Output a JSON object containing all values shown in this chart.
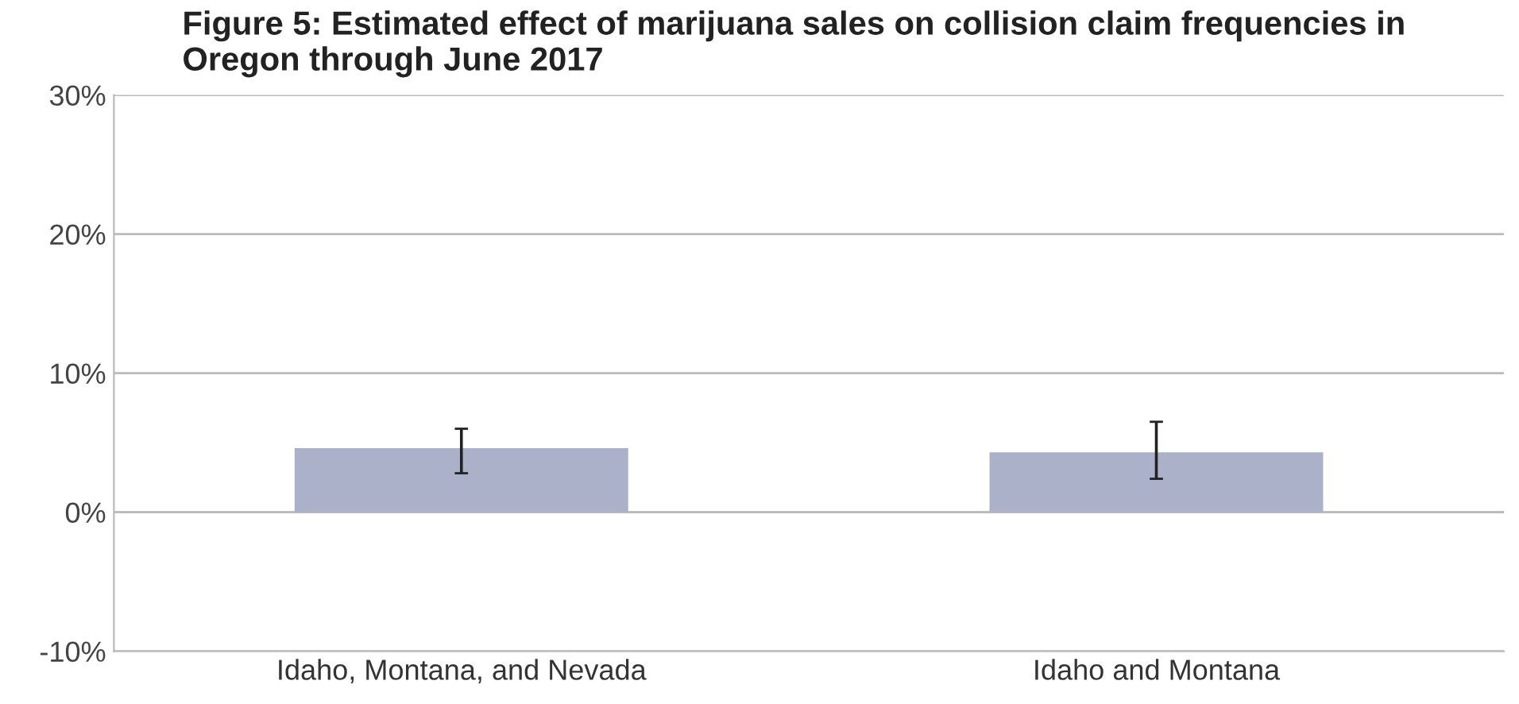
{
  "chart_data": {
    "type": "bar",
    "title": "Figure 5: Estimated effect of marijuana sales on collision claim frequencies in Oregon through June 2017",
    "categories": [
      "Idaho, Montana, and Nevada",
      "Idaho and Montana"
    ],
    "values": [
      4.6,
      4.3
    ],
    "color": "#aab1c8",
    "errors": [
      [
        2.8,
        6.0
      ],
      [
        2.4,
        6.5
      ]
    ],
    "ylim": [
      -10,
      30
    ],
    "yticks": [
      {
        "value": -10,
        "label": "-10%"
      },
      {
        "value": 0,
        "label": "0%"
      },
      {
        "value": 10,
        "label": "10%"
      },
      {
        "value": 20,
        "label": "20%"
      },
      {
        "value": 30,
        "label": "30%"
      }
    ],
    "grid": "y"
  }
}
